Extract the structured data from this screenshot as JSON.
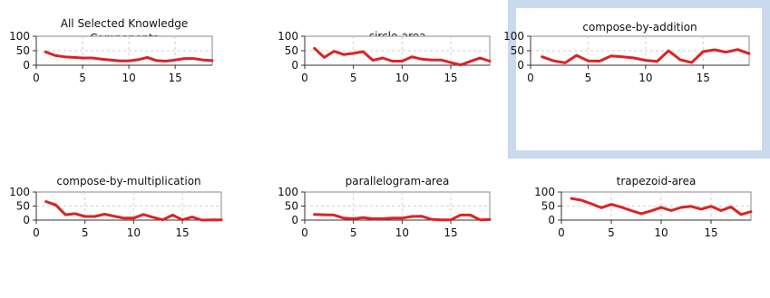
{
  "chart_data": [
    {
      "type": "line",
      "title": "All Selected Knowledge Components",
      "series_color": "#dd2222",
      "xlim": [
        0,
        19
      ],
      "ylim": [
        0,
        100
      ],
      "xticks": [
        0,
        5,
        10,
        15
      ],
      "yticks": [
        0,
        50,
        100
      ],
      "x": [
        1,
        2,
        3,
        4,
        5,
        6,
        7,
        8,
        9,
        10,
        11,
        12,
        13,
        14,
        15,
        16,
        17,
        18,
        19
      ],
      "values": [
        46,
        34,
        29,
        27,
        25,
        25,
        21,
        18,
        15,
        15,
        19,
        27,
        16,
        14,
        18,
        23,
        23,
        18,
        16
      ],
      "selected": false
    },
    {
      "type": "line",
      "title": "circle-area",
      "series_color": "#dd2222",
      "xlim": [
        0,
        19
      ],
      "ylim": [
        0,
        100
      ],
      "xticks": [
        0,
        5,
        10,
        15
      ],
      "yticks": [
        0,
        50,
        100
      ],
      "x": [
        1,
        2,
        3,
        4,
        5,
        6,
        7,
        8,
        9,
        10,
        11,
        12,
        13,
        14,
        15,
        16,
        17,
        18,
        19
      ],
      "values": [
        58,
        27,
        48,
        37,
        41,
        47,
        17,
        25,
        14,
        14,
        29,
        21,
        18,
        18,
        9,
        1,
        13,
        25,
        14
      ],
      "selected": false
    },
    {
      "type": "line",
      "title": "compose-by-addition",
      "series_color": "#dd2222",
      "xlim": [
        0,
        19
      ],
      "ylim": [
        0,
        100
      ],
      "xticks": [
        0,
        5,
        10,
        15
      ],
      "yticks": [
        0,
        50,
        100
      ],
      "x": [
        1,
        2,
        3,
        4,
        5,
        6,
        7,
        8,
        9,
        10,
        11,
        12,
        13,
        14,
        15,
        16,
        17,
        18,
        19
      ],
      "values": [
        29,
        15,
        8,
        34,
        15,
        14,
        32,
        29,
        25,
        17,
        13,
        50,
        19,
        9,
        47,
        53,
        45,
        54,
        40
      ],
      "selected": true
    },
    {
      "type": "line",
      "title": "compose-by-multiplication",
      "series_color": "#dd2222",
      "xlim": [
        0,
        19
      ],
      "ylim": [
        0,
        100
      ],
      "xticks": [
        0,
        5,
        10,
        15
      ],
      "yticks": [
        0,
        50,
        100
      ],
      "x": [
        1,
        2,
        3,
        4,
        5,
        6,
        7,
        8,
        9,
        10,
        11,
        12,
        13,
        14,
        15,
        16,
        17,
        18,
        19
      ],
      "values": [
        66,
        54,
        19,
        23,
        13,
        13,
        21,
        14,
        7,
        7,
        20,
        10,
        1,
        18,
        1,
        11,
        0,
        1,
        1
      ],
      "selected": false
    },
    {
      "type": "line",
      "title": "parallelogram-area",
      "series_color": "#dd2222",
      "xlim": [
        0,
        19
      ],
      "ylim": [
        0,
        100
      ],
      "xticks": [
        0,
        5,
        10,
        15
      ],
      "yticks": [
        0,
        50,
        100
      ],
      "x": [
        1,
        2,
        3,
        4,
        5,
        6,
        7,
        8,
        9,
        10,
        11,
        12,
        13,
        14,
        15,
        16,
        17,
        18,
        19
      ],
      "values": [
        20,
        19,
        18,
        7,
        5,
        9,
        5,
        5,
        7,
        7,
        13,
        14,
        3,
        1,
        1,
        18,
        18,
        1,
        2
      ],
      "selected": false
    },
    {
      "type": "line",
      "title": "trapezoid-area",
      "series_color": "#dd2222",
      "xlim": [
        0,
        19
      ],
      "ylim": [
        0,
        100
      ],
      "xticks": [
        0,
        5,
        10,
        15
      ],
      "yticks": [
        0,
        50,
        100
      ],
      "x": [
        1,
        2,
        3,
        4,
        5,
        6,
        7,
        8,
        9,
        10,
        11,
        12,
        13,
        14,
        15,
        16,
        17,
        18,
        19
      ],
      "values": [
        77,
        71,
        58,
        44,
        56,
        46,
        34,
        23,
        33,
        45,
        34,
        45,
        49,
        39,
        49,
        34,
        47,
        20,
        30
      ],
      "selected": false
    }
  ]
}
